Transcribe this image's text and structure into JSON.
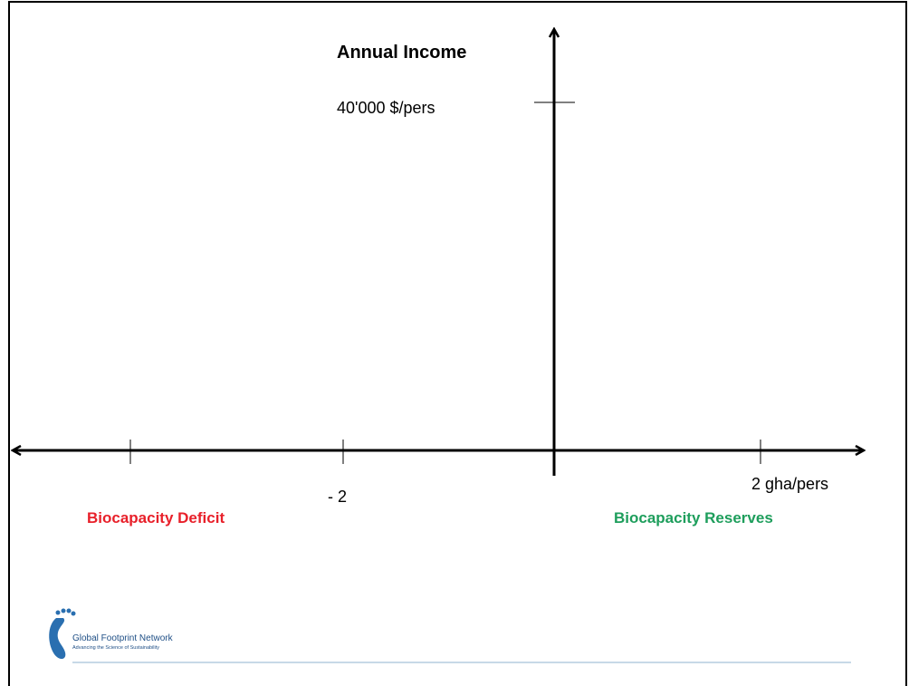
{
  "title": "Annual Income",
  "y_axis": {
    "label": "40'000 $/pers"
  },
  "x_axis": {
    "left_label": "- 2",
    "right_label": "2 gha/pers"
  },
  "regions": {
    "left": "Biocapacity Deficit",
    "right": "Biocapacity Reserves"
  },
  "logo": {
    "name": "Global Footprint Network",
    "tagline": "Advancing the Science of Sustainability"
  }
}
